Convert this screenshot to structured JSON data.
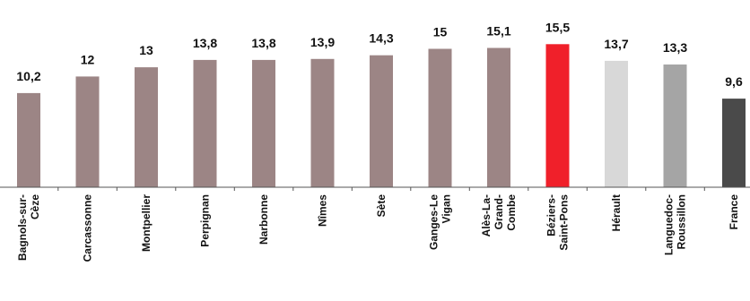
{
  "chart_data": {
    "type": "bar",
    "title": "",
    "xlabel": "",
    "ylabel": "",
    "ylim": [
      0,
      16
    ],
    "grid": false,
    "legend": "none",
    "categories": [
      [
        "Bagnols-sur-",
        "Cèze"
      ],
      [
        "Carcassonne"
      ],
      [
        "Montpellier"
      ],
      [
        "Perpignan"
      ],
      [
        "Narbonne"
      ],
      [
        "Nîmes"
      ],
      [
        "Sète"
      ],
      [
        "Ganges-Le",
        "Vigan"
      ],
      [
        "Alès-La-",
        "Grand-",
        "Combe"
      ],
      [
        "Béziers-",
        "Saint-Pons"
      ],
      [
        "Hérault"
      ],
      [
        "Languedoc-",
        "Roussillon"
      ],
      [
        "France"
      ]
    ],
    "values": [
      10.2,
      12,
      13,
      13.8,
      13.8,
      13.9,
      14.3,
      15,
      15.1,
      15.5,
      13.7,
      13.3,
      9.6
    ],
    "value_labels": [
      "10,2",
      "12",
      "13",
      "13,8",
      "13,8",
      "13,9",
      "14,3",
      "15",
      "15,1",
      "15,5",
      "13,7",
      "13,3",
      "9,6"
    ],
    "colors": [
      "#9c8585",
      "#9c8585",
      "#9c8585",
      "#9c8585",
      "#9c8585",
      "#9c8585",
      "#9c8585",
      "#9c8585",
      "#9c8585",
      "#f0202a",
      "#d8d8d8",
      "#a5a5a5",
      "#4a4a4a"
    ]
  }
}
